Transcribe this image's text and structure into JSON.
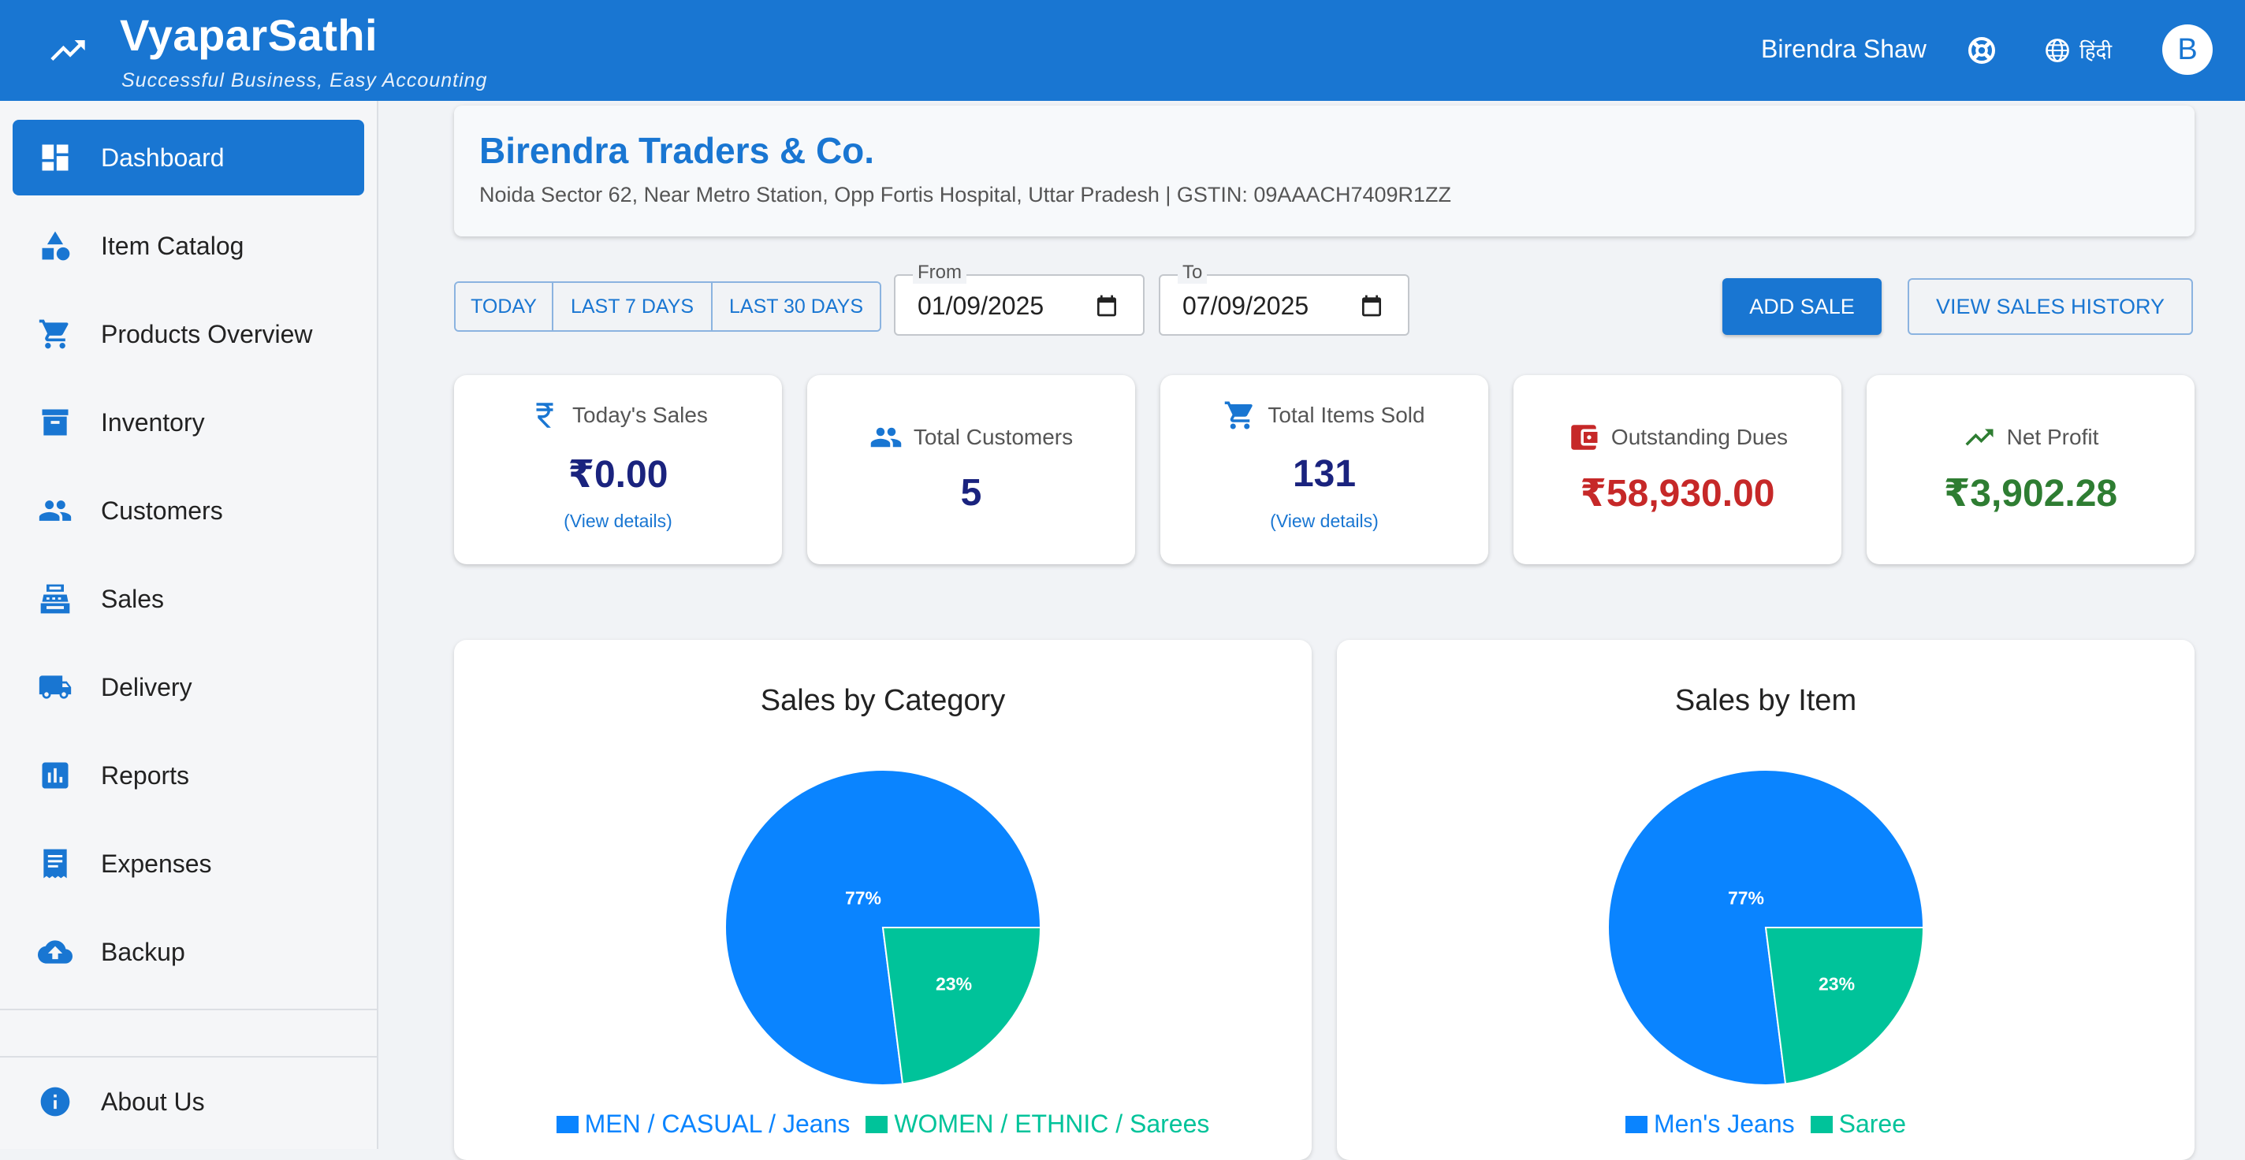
{
  "app": {
    "title": "VyaparSathi",
    "tagline": "Successful Business, Easy Accounting",
    "user_name": "Birendra Shaw",
    "language": "हिंदी",
    "avatar_initial": "B"
  },
  "sidebar": {
    "items": [
      {
        "label": "Dashboard",
        "icon": "dashboard-icon",
        "active": true
      },
      {
        "label": "Item Catalog",
        "icon": "category-icon"
      },
      {
        "label": "Products Overview",
        "icon": "cart-icon"
      },
      {
        "label": "Inventory",
        "icon": "inventory-icon"
      },
      {
        "label": "Customers",
        "icon": "people-icon"
      },
      {
        "label": "Sales",
        "icon": "register-icon"
      },
      {
        "label": "Delivery",
        "icon": "truck-icon"
      },
      {
        "label": "Reports",
        "icon": "bar-chart-icon"
      },
      {
        "label": "Expenses",
        "icon": "receipt-icon"
      },
      {
        "label": "Backup",
        "icon": "cloud-upload-icon"
      }
    ],
    "about": {
      "label": "About Us",
      "icon": "info-icon"
    }
  },
  "business": {
    "name": "Birendra Traders & Co.",
    "address": "Noida Sector 62, Near Metro Station, Opp Fortis Hospital, Uttar Pradesh | GSTIN: 09AAACH7409R1ZZ"
  },
  "filters": {
    "today": "TODAY",
    "last7": "LAST 7 DAYS",
    "last30": "LAST 30 DAYS",
    "from_label": "From",
    "from_value": "01/09/2025",
    "to_label": "To",
    "to_value": "07/09/2025"
  },
  "actions": {
    "add_sale": "ADD SALE",
    "view_history": "VIEW SALES HISTORY"
  },
  "kpis": [
    {
      "label": "Today's Sales",
      "value": "₹0.00",
      "link": "(View details)",
      "icon": "rupee-icon",
      "color": "#1a237e"
    },
    {
      "label": "Total Customers",
      "value": "5",
      "icon": "people-icon",
      "color": "#1a237e"
    },
    {
      "label": "Total Items Sold",
      "value": "131",
      "link": "(View details)",
      "icon": "cart-icon",
      "color": "#1a237e"
    },
    {
      "label": "Outstanding Dues",
      "value": "₹58,930.00",
      "icon": "wallet-icon",
      "color": "#c62828"
    },
    {
      "label": "Net Profit",
      "value": "₹3,902.28",
      "icon": "trending-up-icon",
      "color": "#2e7d32"
    }
  ],
  "colors": {
    "primary": "#1976d2",
    "pie_blue": "#0a84ff",
    "pie_green": "#00c39a"
  },
  "chart_data": [
    {
      "type": "pie",
      "title": "Sales by Category",
      "categories": [
        "MEN / CASUAL / Jeans",
        "WOMEN / ETHNIC / Sarees"
      ],
      "values": [
        77,
        23
      ],
      "labels": [
        "77%",
        "23%"
      ],
      "legend": "bottom"
    },
    {
      "type": "pie",
      "title": "Sales by Item",
      "categories": [
        "Men's Jeans",
        "Saree"
      ],
      "values": [
        77,
        23
      ],
      "labels": [
        "77%",
        "23%"
      ],
      "legend": "bottom"
    }
  ]
}
